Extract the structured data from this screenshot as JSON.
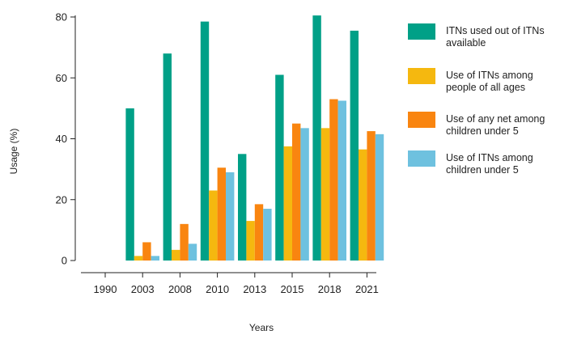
{
  "chart_data": {
    "type": "bar",
    "title": "",
    "xlabel": "Years",
    "ylabel": "Usage (%)",
    "ylim": [
      0,
      85
    ],
    "yticks": [
      0,
      20,
      40,
      60,
      80
    ],
    "grid": false,
    "legend_position": "right",
    "categories": [
      "1990",
      "2003",
      "2008",
      "2010",
      "2013",
      "2015",
      "2018",
      "2021"
    ],
    "series": [
      {
        "name": "ITNs used out of ITNs available",
        "color": "#00a087",
        "values": [
          null,
          50,
          68,
          78.5,
          35,
          61,
          80.5,
          75.5
        ]
      },
      {
        "name": "Use of ITNs among people of all ages",
        "color": "#f5b80f",
        "values": [
          null,
          1.5,
          3.5,
          23,
          13,
          37.5,
          43.5,
          36.5
        ]
      },
      {
        "name": "Use of any net among children under 5",
        "color": "#f98510",
        "values": [
          null,
          6,
          12,
          30.5,
          18.5,
          45,
          53,
          42.5
        ]
      },
      {
        "name": "Use of ITNs among children under 5",
        "color": "#6ec1df",
        "values": [
          null,
          1.5,
          5.5,
          29,
          17,
          43.5,
          52.5,
          41.5
        ]
      }
    ]
  }
}
